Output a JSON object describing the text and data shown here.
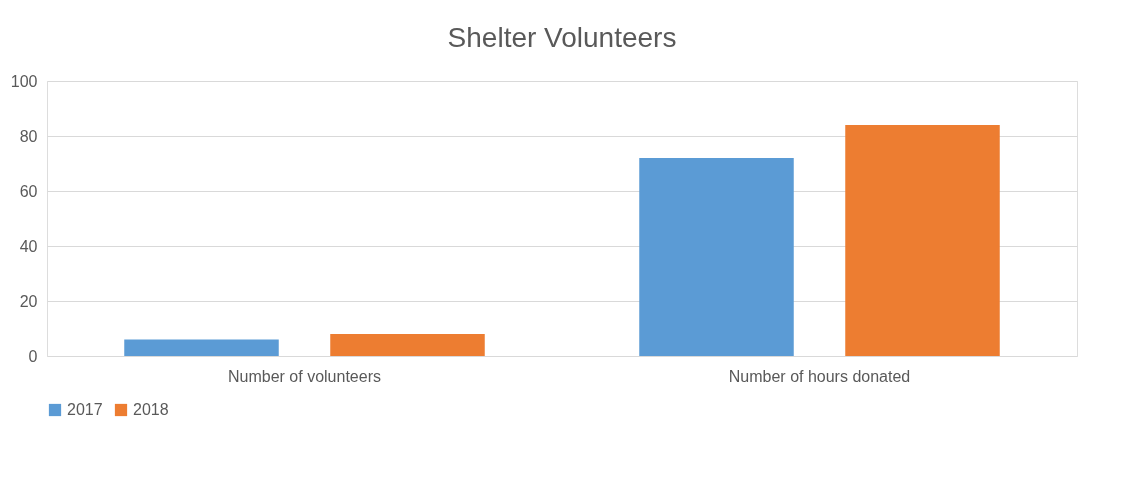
{
  "chart_data": {
    "type": "bar",
    "title": "Shelter Volunteers",
    "categories": [
      "Number of volunteers",
      "Number of hours donated"
    ],
    "series": [
      {
        "name": "2017",
        "color": "#5b9bd5",
        "values": [
          6,
          72
        ]
      },
      {
        "name": "2018",
        "color": "#ed7d31",
        "values": [
          8,
          84
        ]
      }
    ],
    "ylim": [
      0,
      100
    ],
    "yticks": [
      0,
      20,
      40,
      60,
      80,
      100
    ],
    "grid": "y",
    "legend": "bottom"
  }
}
